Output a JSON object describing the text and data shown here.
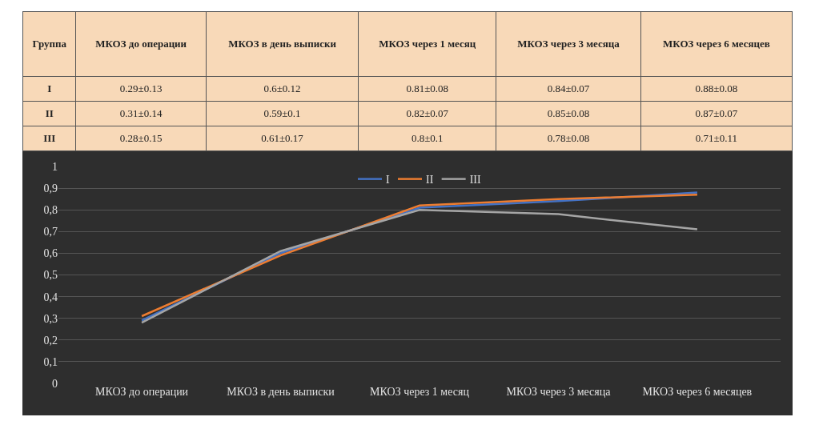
{
  "chart_data": {
    "type": "line",
    "annotations": [
      "Группа"
    ],
    "categories": [
      "МКОЗ до операции",
      "МКОЗ в день выписки",
      "МКОЗ через 1 месяц",
      "МКОЗ через 3 месяца",
      "МКОЗ через 6 месяцев"
    ],
    "series": [
      {
        "name": "I",
        "color": "#4472c4",
        "values": [
          0.29,
          0.6,
          0.81,
          0.84,
          0.88
        ],
        "value_labels": [
          "0.29±0.13",
          "0.6±0.12",
          "0.81±0.08",
          "0.84±0.07",
          "0.88±0.08"
        ]
      },
      {
        "name": "II",
        "color": "#ed7d31",
        "values": [
          0.31,
          0.59,
          0.82,
          0.85,
          0.87
        ],
        "value_labels": [
          "0.31±0.14",
          "0.59±0.1",
          "0.82±0.07",
          "0.85±0.08",
          "0.87±0.07"
        ]
      },
      {
        "name": "III",
        "color": "#a5a5a5",
        "values": [
          0.28,
          0.61,
          0.8,
          0.78,
          0.71
        ],
        "value_labels": [
          "0.28±0.15",
          "0.61±0.17",
          "0.8±0.1",
          "0.78±0.08",
          "0.71±0.11"
        ]
      }
    ],
    "ylim": [
      0,
      1
    ],
    "yticks": [
      0,
      {
        "value": 0.1,
        "label": "0,1"
      },
      {
        "value": 0.2,
        "label": "0,2"
      },
      {
        "value": 0.3,
        "label": "0,3"
      },
      {
        "value": 0.4,
        "label": "0,4"
      },
      {
        "value": 0.5,
        "label": "0,5"
      },
      {
        "value": 0.6,
        "label": "0,6"
      },
      {
        "value": 0.7,
        "label": "0,7"
      },
      {
        "value": 0.8,
        "label": "0,8"
      },
      {
        "value": 0.9,
        "label": "0,9"
      },
      1
    ],
    "grid": "y",
    "legend": "top",
    "marker": "none",
    "line_style": "solid"
  }
}
